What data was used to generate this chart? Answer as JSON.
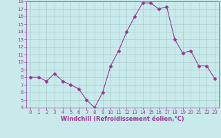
{
  "x": [
    0,
    1,
    2,
    3,
    4,
    5,
    6,
    7,
    8,
    9,
    10,
    11,
    12,
    13,
    14,
    15,
    16,
    17,
    18,
    19,
    20,
    21,
    22,
    23
  ],
  "y": [
    8.0,
    8.0,
    7.5,
    8.5,
    7.5,
    7.0,
    6.5,
    5.0,
    4.0,
    6.0,
    9.5,
    11.5,
    14.0,
    16.0,
    17.8,
    17.8,
    17.0,
    17.3,
    13.0,
    11.2,
    11.5,
    9.5,
    9.5,
    7.8
  ],
  "line_color": "#993399",
  "marker": "D",
  "marker_size": 2.5,
  "background_color": "#c8eaea",
  "grid_color": "#aacccc",
  "xlabel": "Windchill (Refroidissement éolien,°C)",
  "ylim": [
    4,
    18
  ],
  "xlim": [
    -0.5,
    23.5
  ],
  "yticks": [
    4,
    5,
    6,
    7,
    8,
    9,
    10,
    11,
    12,
    13,
    14,
    15,
    16,
    17,
    18
  ],
  "xticks": [
    0,
    1,
    2,
    3,
    4,
    5,
    6,
    7,
    8,
    9,
    10,
    11,
    12,
    13,
    14,
    15,
    16,
    17,
    18,
    19,
    20,
    21,
    22,
    23
  ],
  "tick_color": "#993399",
  "label_color": "#993399",
  "tick_fontsize": 5.0,
  "xlabel_fontsize": 6.0,
  "line_width": 0.8
}
